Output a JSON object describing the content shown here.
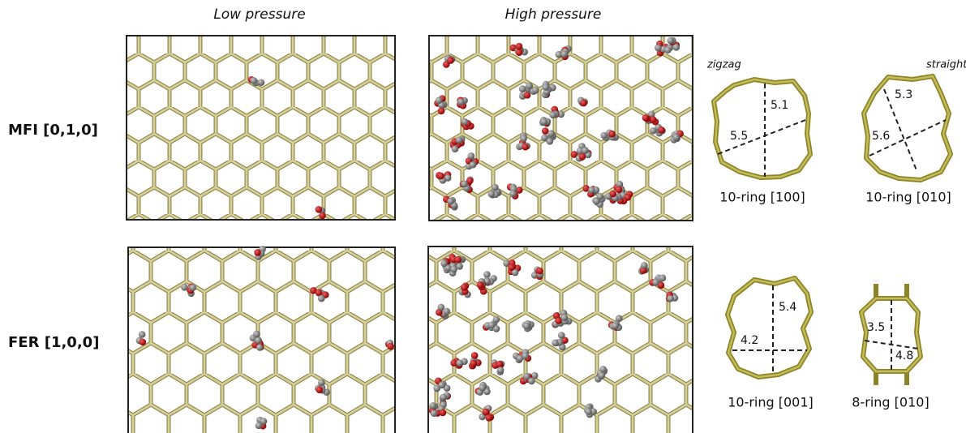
{
  "header": {
    "low": "Low pressure",
    "high": "High pressure"
  },
  "rows": [
    {
      "label": "MFI [0,1,0]"
    },
    {
      "label": "FER [1,0,0]"
    }
  ],
  "channel_labels": {
    "zigzag": "zigzag",
    "straight": "straight"
  },
  "rings": [
    {
      "label": "10-ring [100]",
      "d1": "5.1",
      "d2": "5.5"
    },
    {
      "label": "10-ring [010]",
      "d1": "5.3",
      "d2": "5.6"
    },
    {
      "label": "10-ring [001]",
      "d1": "5.4",
      "d2": "4.2"
    },
    {
      "label": "8-ring [010]",
      "d1": "3.5",
      "d2": "4.8"
    }
  ]
}
